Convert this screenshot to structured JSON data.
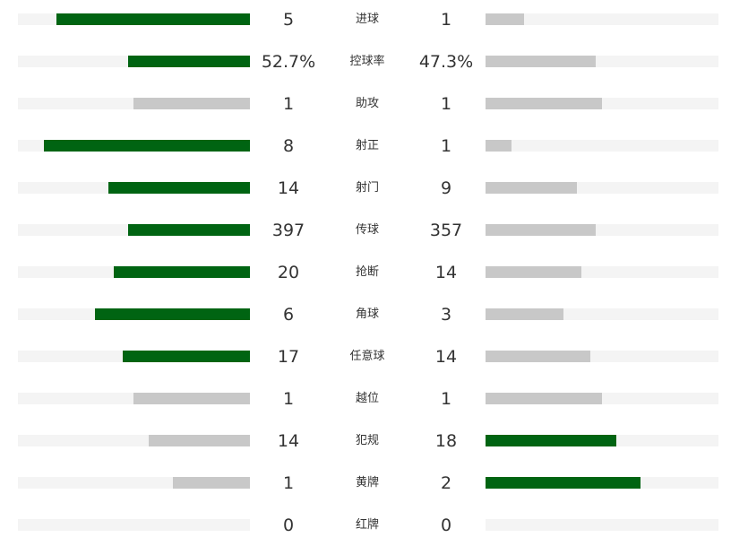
{
  "chart_data": {
    "type": "bar",
    "categories": [
      "进球",
      "控球率",
      "助攻",
      "射正",
      "射门",
      "传球",
      "抢断",
      "角球",
      "任意球",
      "越位",
      "犯规",
      "黄牌",
      "红牌"
    ],
    "left_display": [
      "5",
      "52.7%",
      "1",
      "8",
      "14",
      "397",
      "20",
      "6",
      "17",
      "1",
      "14",
      "1",
      "0"
    ],
    "right_display": [
      "1",
      "47.3%",
      "1",
      "1",
      "9",
      "357",
      "14",
      "3",
      "14",
      "1",
      "18",
      "2",
      "0"
    ],
    "series": [
      {
        "values": [
          5,
          52.7,
          1,
          8,
          14,
          397,
          20,
          6,
          17,
          1,
          14,
          1,
          0
        ]
      },
      {
        "values": [
          1,
          47.3,
          1,
          1,
          9,
          357,
          14,
          3,
          14,
          1,
          18,
          2,
          0
        ]
      }
    ],
    "colors": {
      "lead": "#006412",
      "other": "#c8c8c8",
      "track": "#f4f4f4",
      "text": "#333333"
    }
  }
}
